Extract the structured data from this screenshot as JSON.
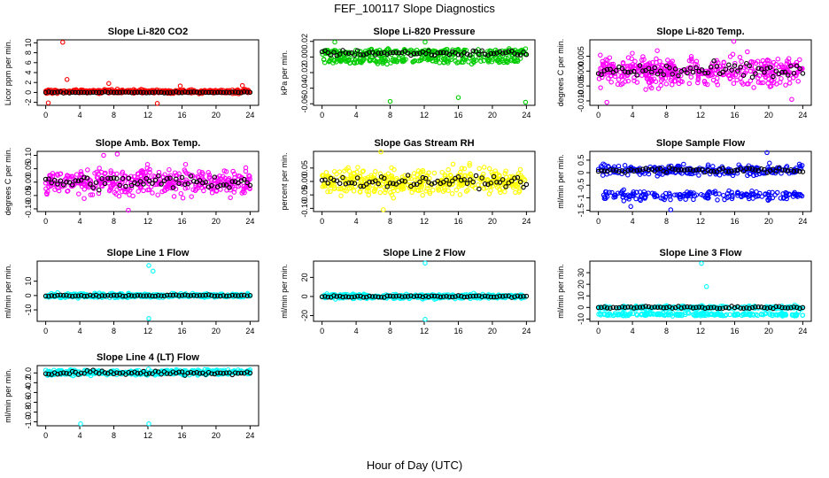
{
  "title": "FEF_100117  Slope Diagnostics",
  "xlabel": "Hour of Day (UTC)",
  "colors": {
    "co2": "#ff0000",
    "pressure": "#00cc00",
    "temp": "#ff00ff",
    "rh": "#ffff00",
    "flow": "#0000ff",
    "line": "#00ffff",
    "mean": "#000000"
  },
  "chart_data": [
    {
      "type": "scatter",
      "title": "Slope Li-820 CO2",
      "ylabel": "Licor ppm per min.",
      "color": "#ff0000",
      "ylim": [
        -2.6,
        10.6
      ],
      "yticks": [
        -2,
        0,
        2,
        4,
        6,
        8,
        10
      ],
      "ytick_labels": [
        "-2",
        "0",
        "2",
        "4",
        "6",
        "8",
        "10"
      ],
      "pattern": "band",
      "center": 0.2,
      "spread": 0.35,
      "mean_center": 0.0,
      "mean_spread": 0.12,
      "outliers": [
        [
          2,
          10.1
        ],
        [
          2.5,
          2.6
        ],
        [
          7.4,
          1.8
        ],
        [
          15.8,
          1.3
        ],
        [
          0.3,
          -2.1
        ],
        [
          13.1,
          -2.2
        ],
        [
          23.1,
          1.4
        ]
      ]
    },
    {
      "type": "scatter",
      "title": "Slope Li-820 Pressure",
      "ylabel": "kPa per min.",
      "color": "#00cc00",
      "ylim": [
        -0.062,
        0.022
      ],
      "yticks": [
        -0.06,
        -0.04,
        -0.02,
        0.0,
        0.02
      ],
      "ytick_labels": [
        "-0.06",
        "-0.04",
        "-0.02",
        "0.00",
        "0.02"
      ],
      "pattern": "two-level",
      "levels": [
        0.006,
        -0.004
      ],
      "spread": 0.004,
      "mean_center": 0.005,
      "mean_spread": 0.004,
      "outliers": [
        [
          8,
          -0.057
        ],
        [
          16,
          -0.052
        ],
        [
          23.9,
          -0.058
        ],
        [
          1.5,
          0.019
        ],
        [
          12.1,
          0.019
        ]
      ]
    },
    {
      "type": "scatter",
      "title": "Slope Li-820 Temp.",
      "ylabel": "degrees C per min.",
      "color": "#ff00ff",
      "ylim": [
        -0.0115,
        0.0105
      ],
      "yticks": [
        -0.01,
        -0.005,
        0.0,
        0.005
      ],
      "ytick_labels": [
        "-0.010",
        "-0.005",
        "0.000",
        "0.005"
      ],
      "pattern": "band",
      "center": 0.0,
      "spread": 0.0045,
      "mean_center": 0.0,
      "mean_spread": 0.003,
      "outliers": [
        [
          15.9,
          0.01
        ],
        [
          1.0,
          -0.0105
        ],
        [
          22.7,
          -0.0095
        ]
      ]
    },
    {
      "type": "scatter",
      "title": "Slope Amb. Box Temp.",
      "ylabel": "degrees C per min.",
      "color": "#ff00ff",
      "ylim": [
        -0.11,
        0.115
      ],
      "yticks": [
        -0.1,
        -0.05,
        0.0,
        0.05,
        0.1
      ],
      "ytick_labels": [
        "-0.10",
        "-0.05",
        "0.00",
        "0.05",
        "0.10"
      ],
      "pattern": "band",
      "center": 0.0,
      "spread": 0.045,
      "mean_center": 0.0,
      "mean_spread": 0.03,
      "outliers": [
        [
          8.4,
          0.105
        ],
        [
          9.7,
          -0.105
        ],
        [
          6.8,
          0.1
        ]
      ]
    },
    {
      "type": "scatter",
      "title": "Slope Gas Stream RH",
      "ylabel": "percent per min.",
      "color": "#ffff00",
      "ylim": [
        -0.112,
        0.112
      ],
      "yticks": [
        -0.1,
        -0.05,
        0.0,
        0.05
      ],
      "ytick_labels": [
        "-0.10",
        "-0.05",
        "0.00",
        "0.05"
      ],
      "pattern": "band",
      "center": 0.0,
      "spread": 0.045,
      "mean_center": 0.0,
      "mean_spread": 0.02,
      "outliers": [
        [
          6.9,
          0.11
        ],
        [
          7.2,
          -0.105
        ]
      ]
    },
    {
      "type": "scatter",
      "title": "Slope Sample Flow",
      "ylabel": "ml/min per min.",
      "color": "#0000ff",
      "ylim": [
        -1.55,
        0.85
      ],
      "yticks": [
        -1.5,
        -1.0,
        -0.5,
        0.0,
        0.5
      ],
      "ytick_labels": [
        "-1.5",
        "-1",
        "-0.5",
        "0",
        "0.5"
      ],
      "pattern": "two-level",
      "levels": [
        0.1,
        -0.9
      ],
      "spread": 0.18,
      "mean_center": 0.1,
      "mean_spread": 0.12,
      "outliers": [
        [
          19.8,
          0.8
        ],
        [
          8.5,
          -1.48
        ],
        [
          3.8,
          -1.35
        ]
      ]
    },
    {
      "type": "scatter",
      "title": "Slope Line 1 Flow",
      "ylabel": "ml/min per min.",
      "color": "#00ffff",
      "ylim": [
        -18,
        24
      ],
      "yticks": [
        -10,
        0,
        10
      ],
      "ytick_labels": [
        "-10",
        "0",
        "10"
      ],
      "pattern": "band",
      "center": 0.0,
      "spread": 1.3,
      "mean_center": 0.0,
      "mean_spread": 0.6,
      "outliers": [
        [
          12.1,
          21
        ],
        [
          12.6,
          17
        ],
        [
          12.1,
          -16
        ]
      ]
    },
    {
      "type": "scatter",
      "title": "Slope Line 2 Flow",
      "ylabel": "ml/min per min.",
      "color": "#00ffff",
      "ylim": [
        -26,
        37
      ],
      "yticks": [
        -20,
        0,
        20
      ],
      "ytick_labels": [
        "-20",
        "0",
        "20"
      ],
      "pattern": "band",
      "center": 0.0,
      "spread": 2.2,
      "mean_center": 0.0,
      "mean_spread": 1.0,
      "outliers": [
        [
          12.1,
          35
        ],
        [
          12.1,
          -24
        ]
      ]
    },
    {
      "type": "scatter",
      "title": "Slope Line 3 Flow",
      "ylabel": "ml/min per min.",
      "color": "#00ffff",
      "ylim": [
        -12,
        40
      ],
      "yticks": [
        -10,
        0,
        10,
        20,
        30
      ],
      "ytick_labels": [
        "-10",
        "0",
        "10",
        "20",
        "30"
      ],
      "pattern": "two-level",
      "levels": [
        0,
        -6
      ],
      "spread": 1.5,
      "mean_center": 0.0,
      "mean_spread": 1.2,
      "outliers": [
        [
          12.1,
          38
        ],
        [
          12.7,
          18
        ]
      ]
    },
    {
      "type": "scatter",
      "title": "Slope Line 4 (LT) Flow",
      "ylabel": "ml/min per min.",
      "color": "#00ffff",
      "ylim": [
        -1.08,
        0.15
      ],
      "yticks": [
        -1.0,
        -0.8,
        -0.6,
        -0.4,
        -0.2,
        0.0
      ],
      "ytick_labels": [
        "-1.0",
        "-0.8",
        "-0.6",
        "-0.4",
        "-0.2",
        "0.0"
      ],
      "pattern": "band",
      "center": 0.01,
      "spread": 0.05,
      "mean_center": 0.0,
      "mean_spread": 0.05,
      "outliers": [
        [
          4.1,
          -1.04
        ],
        [
          12.1,
          -1.04
        ]
      ]
    }
  ],
  "xaxis": {
    "xlim": [
      -1,
      25
    ],
    "xticks": [
      0,
      4,
      8,
      12,
      16,
      20,
      24
    ],
    "xtick_labels": [
      "0",
      "4",
      "8",
      "12",
      "16",
      "20",
      "24"
    ]
  }
}
